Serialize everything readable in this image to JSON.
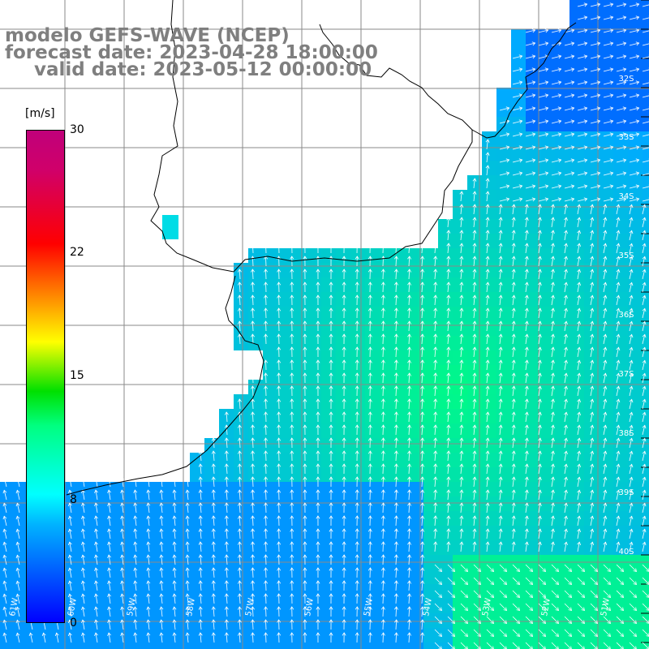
{
  "title": {
    "line1": "modelo GEFS-WAVE (NCEP)",
    "line2": "forecast date: 2023-04-28 18:00:00",
    "line3": "valid date: 2023-05-12 00:00:00"
  },
  "colorbar": {
    "unit": "[m/s]",
    "ticks": [
      "30",
      "22",
      "15",
      "8",
      "0"
    ],
    "tick_values": [
      30,
      22,
      15,
      8,
      0
    ],
    "range": [
      0,
      30
    ]
  },
  "grid": {
    "lat_labels": [
      "32S",
      "33S",
      "34S",
      "35S",
      "36S",
      "37S",
      "38S",
      "39S",
      "40S"
    ],
    "lon_labels": [
      "61W",
      "60W",
      "59W",
      "58W",
      "57W",
      "56W",
      "55W",
      "54W",
      "53W",
      "52W",
      "51W"
    ]
  },
  "colors": {
    "title": "#7f7f7f",
    "grid": "#8a8a8a",
    "coast": "#000000",
    "arrow": "#ffffff"
  }
}
